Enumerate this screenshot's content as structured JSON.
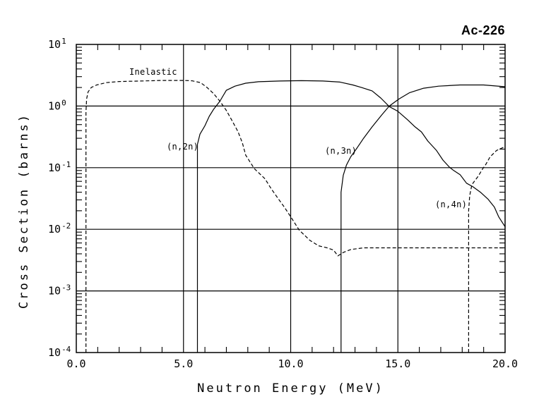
{
  "page": {
    "background": "#ffffff",
    "foreground": "#000000"
  },
  "chart_data": {
    "type": "line",
    "title": "Ac-226",
    "xlabel": "Neutron Energy (MeV)",
    "ylabel": "Cross Section (barns)",
    "grid": true,
    "legend_position": "inline-annotations",
    "line_color": "#000000",
    "x_axis": {
      "min": 0,
      "max": 20,
      "major_ticks": [
        0,
        5,
        10,
        15,
        20
      ],
      "major_tick_labels": [
        "0.0",
        "5.0",
        "10.0",
        "15.0",
        "20.0"
      ],
      "minor_tick_step": 1,
      "gridlines_at": [
        5,
        10,
        15
      ]
    },
    "y_axis": {
      "scale": "log10",
      "min": 0.0001,
      "max": 10,
      "decade_exponents": [
        1,
        0,
        -1,
        -2,
        -3,
        -4
      ],
      "gridline_exponents": [
        0,
        -1,
        -2,
        -3
      ],
      "mantissa_prefix": "10"
    },
    "series": [
      {
        "name": "Inelastic",
        "line_style": "dashed",
        "color": "#000000",
        "points": [
          [
            0.45,
            0.0001
          ],
          [
            0.45,
            0.8
          ],
          [
            0.48,
            1.3
          ],
          [
            0.55,
            1.7
          ],
          [
            0.7,
            2.0
          ],
          [
            0.95,
            2.2
          ],
          [
            1.4,
            2.4
          ],
          [
            2.0,
            2.5
          ],
          [
            3.0,
            2.55
          ],
          [
            4.0,
            2.6
          ],
          [
            5.0,
            2.6
          ],
          [
            5.4,
            2.57
          ],
          [
            5.8,
            2.4
          ],
          [
            6.1,
            2.0
          ],
          [
            6.4,
            1.6
          ],
          [
            6.7,
            1.2
          ],
          [
            7.0,
            0.85
          ],
          [
            7.3,
            0.55
          ],
          [
            7.55,
            0.38
          ],
          [
            7.75,
            0.25
          ],
          [
            7.9,
            0.16
          ],
          [
            8.3,
            0.097
          ],
          [
            8.8,
            0.066
          ],
          [
            9.1,
            0.045
          ],
          [
            9.4,
            0.032
          ],
          [
            9.7,
            0.023
          ],
          [
            10.0,
            0.016
          ],
          [
            10.4,
            0.0097
          ],
          [
            10.9,
            0.0066
          ],
          [
            11.3,
            0.0054
          ],
          [
            11.7,
            0.005
          ],
          [
            12.0,
            0.0046
          ],
          [
            12.2,
            0.0037
          ],
          [
            12.45,
            0.0042
          ],
          [
            12.8,
            0.0047
          ],
          [
            13.4,
            0.005
          ],
          [
            15.0,
            0.005
          ],
          [
            17.0,
            0.005
          ],
          [
            19.0,
            0.005
          ],
          [
            20.0,
            0.005
          ]
        ]
      },
      {
        "name": "(n,2n)",
        "line_style": "solid",
        "color": "#000000",
        "points": [
          [
            5.65,
            0.0001
          ],
          [
            5.65,
            0.24
          ],
          [
            5.77,
            0.35
          ],
          [
            6.0,
            0.48
          ],
          [
            6.2,
            0.68
          ],
          [
            6.4,
            0.88
          ],
          [
            6.7,
            1.2
          ],
          [
            7.0,
            1.8
          ],
          [
            7.4,
            2.1
          ],
          [
            7.9,
            2.35
          ],
          [
            8.5,
            2.48
          ],
          [
            9.5,
            2.55
          ],
          [
            10.5,
            2.58
          ],
          [
            11.5,
            2.55
          ],
          [
            12.3,
            2.45
          ],
          [
            12.9,
            2.2
          ],
          [
            13.3,
            2.0
          ],
          [
            13.8,
            1.76
          ],
          [
            14.2,
            1.35
          ],
          [
            14.6,
            0.98
          ],
          [
            15.0,
            0.82
          ],
          [
            15.45,
            0.6
          ],
          [
            15.8,
            0.46
          ],
          [
            16.1,
            0.38
          ],
          [
            16.4,
            0.27
          ],
          [
            16.8,
            0.19
          ],
          [
            17.1,
            0.133
          ],
          [
            17.4,
            0.102
          ],
          [
            17.6,
            0.09
          ],
          [
            17.9,
            0.077
          ],
          [
            18.2,
            0.056
          ],
          [
            18.5,
            0.049
          ],
          [
            18.85,
            0.04
          ],
          [
            19.2,
            0.031
          ],
          [
            19.5,
            0.023
          ],
          [
            19.7,
            0.016
          ],
          [
            20.0,
            0.011
          ]
        ]
      },
      {
        "name": "(n,3n)",
        "line_style": "solid",
        "color": "#000000",
        "points": [
          [
            12.35,
            0.0001
          ],
          [
            12.35,
            0.04
          ],
          [
            12.45,
            0.075
          ],
          [
            12.6,
            0.11
          ],
          [
            12.8,
            0.15
          ],
          [
            13.1,
            0.21
          ],
          [
            13.4,
            0.3
          ],
          [
            13.8,
            0.46
          ],
          [
            14.25,
            0.72
          ],
          [
            14.6,
            1.0
          ],
          [
            15.05,
            1.3
          ],
          [
            15.55,
            1.65
          ],
          [
            16.2,
            1.95
          ],
          [
            16.9,
            2.1
          ],
          [
            17.9,
            2.2
          ],
          [
            19.0,
            2.2
          ],
          [
            20.0,
            2.06
          ]
        ]
      },
      {
        "name": "(n,4n)",
        "line_style": "dashed",
        "color": "#000000",
        "points": [
          [
            18.3,
            0.0001
          ],
          [
            18.3,
            0.02
          ],
          [
            18.35,
            0.035
          ],
          [
            18.45,
            0.053
          ],
          [
            18.75,
            0.073
          ],
          [
            18.95,
            0.095
          ],
          [
            19.1,
            0.113
          ],
          [
            19.3,
            0.15
          ],
          [
            19.6,
            0.19
          ],
          [
            20.0,
            0.22
          ]
        ]
      }
    ]
  }
}
